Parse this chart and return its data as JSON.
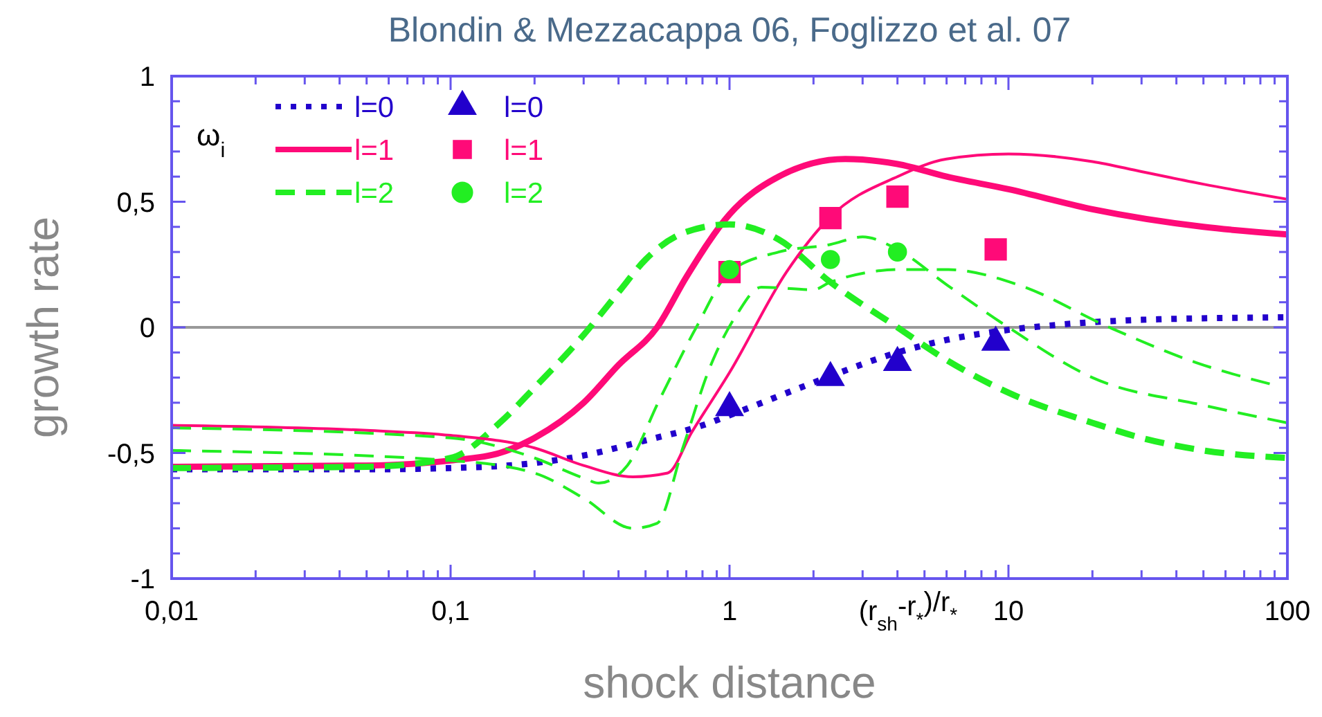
{
  "chart_data": {
    "type": "line",
    "title": "Blondin & Mezzacappa 06, Foglizzo et al. 07",
    "xlabel": "shock distance",
    "ylabel": "growth rate",
    "annotations": [
      "ω$_{i}$",
      "(r$_{sh}$-r$_{*}$)/r$_{*}$"
    ],
    "log": "x",
    "grid": false,
    "legend": "top left",
    "xlim": [
      0.01,
      100
    ],
    "ylim": [
      -1,
      1
    ],
    "xticks": [
      {
        "value": 0.01,
        "label": "0,01"
      },
      {
        "value": 0.02,
        "label": null
      },
      {
        "value": 0.03,
        "label": null
      },
      {
        "value": 0.04,
        "label": null
      },
      {
        "value": 0.05,
        "label": null
      },
      {
        "value": 0.06,
        "label": null
      },
      {
        "value": 0.07,
        "label": null
      },
      {
        "value": 0.08,
        "label": null
      },
      {
        "value": 0.09,
        "label": null
      },
      {
        "value": 0.1,
        "label": "0,1"
      },
      {
        "value": 0.2,
        "label": null
      },
      {
        "value": 0.3,
        "label": null
      },
      {
        "value": 0.4,
        "label": null
      },
      {
        "value": 0.5,
        "label": null
      },
      {
        "value": 0.6,
        "label": null
      },
      {
        "value": 0.7,
        "label": null
      },
      {
        "value": 0.8,
        "label": null
      },
      {
        "value": 0.9,
        "label": null
      },
      1,
      {
        "value": 2,
        "label": null
      },
      {
        "value": 3,
        "label": null
      },
      {
        "value": 4,
        "label": null
      },
      {
        "value": 5,
        "label": null
      },
      {
        "value": 6,
        "label": null
      },
      {
        "value": 7,
        "label": null
      },
      {
        "value": 8,
        "label": null
      },
      {
        "value": 9,
        "label": null
      },
      10,
      {
        "value": 20,
        "label": null
      },
      {
        "value": 30,
        "label": null
      },
      {
        "value": 40,
        "label": null
      },
      {
        "value": 50,
        "label": null
      },
      {
        "value": 60,
        "label": null
      },
      {
        "value": 70,
        "label": null
      },
      {
        "value": 80,
        "label": null
      },
      {
        "value": 90,
        "label": null
      },
      100
    ],
    "yticks": [
      {
        "value": -1,
        "label": "-1"
      },
      {
        "value": -0.9,
        "label": null
      },
      {
        "value": -0.8,
        "label": null
      },
      {
        "value": -0.7,
        "label": null
      },
      {
        "value": -0.6,
        "label": null
      },
      {
        "value": -0.5,
        "label": "-0,5"
      },
      {
        "value": -0.4,
        "label": null
      },
      {
        "value": -0.3,
        "label": null
      },
      {
        "value": -0.2,
        "label": null
      },
      {
        "value": -0.1,
        "label": null
      },
      0,
      {
        "value": 0.1,
        "label": null
      },
      {
        "value": 0.2,
        "label": null
      },
      {
        "value": 0.3,
        "label": null
      },
      {
        "value": 0.4,
        "label": null
      },
      {
        "value": 0.5,
        "label": "0,5"
      },
      {
        "value": 0.6,
        "label": null
      },
      {
        "value": 0.7,
        "label": null
      },
      {
        "value": 0.8,
        "label": null
      },
      {
        "value": 0.9,
        "label": null
      },
      1
    ],
    "ref_lines": [
      {
        "axis": "y",
        "value": 0,
        "color": "#999999"
      }
    ],
    "series": [
      {
        "name": "l=0",
        "line_style": "dotted",
        "color": "#2200cc",
        "x": [
          0.01,
          0.05,
          0.1,
          0.2,
          0.3,
          0.5,
          0.8,
          1,
          2,
          4,
          6,
          10,
          15,
          30,
          100
        ],
        "values": [
          -0.565,
          -0.565,
          -0.56,
          -0.54,
          -0.51,
          -0.45,
          -0.39,
          -0.35,
          -0.22,
          -0.1,
          -0.05,
          -0.01,
          0.01,
          0.03,
          0.04
        ]
      },
      {
        "name": "l=1",
        "line_style": "solid",
        "color": "#ff0a78",
        "x": [
          0.01,
          0.05,
          0.1,
          0.15,
          0.2,
          0.3,
          0.4,
          0.55,
          0.7,
          1,
          1.5,
          2.6,
          4,
          6,
          10,
          20,
          50,
          100
        ],
        "values": [
          -0.555,
          -0.55,
          -0.53,
          -0.5,
          -0.44,
          -0.3,
          -0.15,
          0,
          0.2,
          0.45,
          0.6,
          0.67,
          0.65,
          0.6,
          0.55,
          0.47,
          0.4,
          0.37
        ]
      },
      {
        "name": "l=2",
        "line_style": "dashed",
        "color": "#22ee22",
        "x": [
          0.01,
          0.05,
          0.1,
          0.15,
          0.2,
          0.3,
          0.4,
          0.5,
          0.7,
          1,
          1.5,
          2.3,
          4,
          6,
          10,
          20,
          30,
          50,
          100
        ],
        "values": [
          -0.56,
          -0.555,
          -0.52,
          -0.38,
          -0.24,
          -0.03,
          0.14,
          0.27,
          0.38,
          0.41,
          0.35,
          0.18,
          0,
          -0.13,
          -0.26,
          -0.38,
          -0.44,
          -0.49,
          -0.52
        ]
      },
      {
        "type": "line",
        "line_style": "solid",
        "color": "#ff0a78",
        "x": [
          0.01,
          0.05,
          0.1,
          0.2,
          0.3,
          0.45,
          0.6,
          0.73,
          1,
          1.6,
          2.3,
          4,
          6,
          10,
          20,
          30,
          50,
          100
        ],
        "values": [
          -0.39,
          -0.41,
          -0.43,
          -0.48,
          -0.55,
          -0.595,
          -0.58,
          -0.42,
          -0.18,
          0.22,
          0.44,
          0.6,
          0.67,
          0.69,
          0.66,
          0.62,
          0.57,
          0.51
        ]
      },
      {
        "type": "line",
        "line_style": "dashed",
        "color": "#22ee22",
        "x": [
          0.01,
          0.1,
          0.2,
          0.3,
          0.34,
          0.43,
          0.56,
          0.76,
          1,
          1.5,
          2.3,
          3,
          4,
          6,
          10,
          20,
          50,
          100
        ],
        "values": [
          -0.4,
          -0.44,
          -0.52,
          -0.6,
          -0.62,
          -0.55,
          -0.29,
          0,
          0.22,
          0.3,
          0.33,
          0.36,
          0.31,
          0.17,
          0,
          -0.2,
          -0.31,
          -0.38
        ]
      },
      {
        "type": "line",
        "line_style": "dashed",
        "color": "#22ee22",
        "x": [
          0.01,
          0.1,
          0.2,
          0.3,
          0.45,
          0.55,
          0.68,
          0.85,
          1.06,
          1.3,
          2,
          2.3,
          4.1,
          6.1,
          10.8,
          23,
          47,
          90
        ],
        "values": [
          -0.49,
          -0.53,
          -0.58,
          -0.68,
          -0.8,
          -0.78,
          -0.48,
          -0.16,
          0.05,
          0.16,
          0.15,
          0.18,
          0.23,
          0.23,
          0.17,
          0,
          -0.14,
          -0.23
        ]
      },
      {
        "name": "l=0",
        "type": "scatter",
        "marker": "triangle",
        "color": "#2200cc",
        "x": [
          1,
          2.3,
          4,
          9
        ],
        "values": [
          -0.32,
          -0.2,
          -0.14,
          -0.06
        ]
      },
      {
        "name": "l=1",
        "type": "scatter",
        "marker": "square",
        "color": "#ff0a78",
        "x": [
          1,
          2.3,
          4,
          9
        ],
        "values": [
          0.22,
          0.435,
          0.52,
          0.31
        ]
      },
      {
        "name": "l=2",
        "type": "scatter",
        "marker": "circle",
        "color": "#22ee22",
        "x": [
          1,
          2.3,
          4
        ],
        "values": [
          0.23,
          0.27,
          0.3
        ]
      }
    ]
  }
}
